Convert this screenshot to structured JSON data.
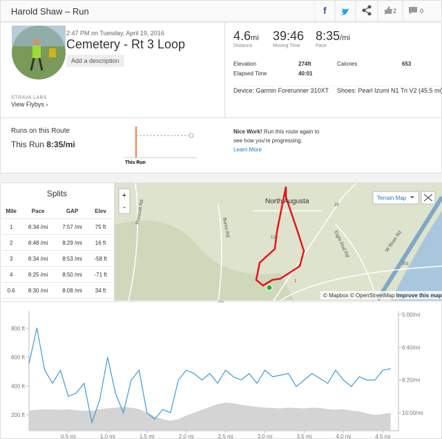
{
  "header": {
    "title": "Harold Shaw – Run",
    "kudos": "2",
    "comments": "0"
  },
  "activity": {
    "datetime": "2:47 PM on Tuesday, April 19, 2016",
    "name": "Cemetery - Rt 3 Loop",
    "add_description": "Add a description",
    "labs": "STRAVA LABS",
    "flybys": "View Flybys"
  },
  "stats": {
    "primary": [
      {
        "value": "4.6",
        "unit": "mi",
        "label": "Distance"
      },
      {
        "value": "39:46",
        "label": "Moving Time"
      },
      {
        "value": "8:35",
        "unit": "/mi",
        "label": "Pace"
      }
    ],
    "details": [
      [
        {
          "label": "Elevation",
          "value": "274ft"
        },
        {
          "label": "Calories",
          "value": "653"
        }
      ],
      [
        {
          "label": "Elapsed Time",
          "value": "40:01"
        }
      ]
    ],
    "device": "Device: Garmin Forerunner 310XT",
    "shoes": "Shoes: Pearl Izumi N1 Tri V2 (45.5 mi)"
  },
  "route": {
    "title": "Runs on this Route",
    "this_run_label": "This Run",
    "this_run_pace": "8:35/mi",
    "marker": "This Run",
    "message_bold": "Nice Work!",
    "message_1": "Run this route again to",
    "message_2": "see how you're progressing.",
    "link": "Learn More"
  },
  "splits": {
    "title": "Splits",
    "columns": [
      "Mile",
      "Pace",
      "GAP",
      "Elev"
    ],
    "rows": [
      [
        "1",
        "8:34 /mi",
        "7:57 /mi",
        "75 ft"
      ],
      [
        "2",
        "8:48 /mi",
        "8:29 /mi",
        "16 ft"
      ],
      [
        "3",
        "8:34 /mi",
        "8:53 /mi",
        "-58 ft"
      ],
      [
        "4",
        "8:25 /mi",
        "8:50 /mi",
        "-71 ft"
      ],
      [
        "0.6",
        "8:30 /mi",
        "8:08 /mi",
        "34 ft"
      ]
    ]
  },
  "map": {
    "place": "North Augusta",
    "roads": [
      "Prescott Rd",
      "Burns Rd",
      "Eight Rod Rd",
      "W River Rd"
    ],
    "route_numbers": [
      "25",
      "125",
      "1",
      "201"
    ],
    "terrain": "Terrain Map",
    "zoom_in": "+",
    "zoom_out": "-",
    "attribution": "© Mapbox © OpenStreetMap",
    "improve": "Improve this map"
  },
  "chart_data": {
    "type": "line",
    "x": [
      0,
      0.1,
      0.2,
      0.3,
      0.4,
      0.5,
      0.6,
      0.7,
      0.8,
      0.9,
      1.0,
      1.1,
      1.2,
      1.3,
      1.4,
      1.5,
      1.6,
      1.7,
      1.8,
      1.9,
      2.0,
      2.1,
      2.2,
      2.3,
      2.4,
      2.5,
      2.6,
      2.7,
      2.8,
      2.9,
      3.0,
      3.1,
      3.2,
      3.3,
      3.4,
      3.5,
      3.6,
      3.7,
      3.8,
      3.9,
      4.0,
      4.1,
      4.2,
      4.3,
      4.4,
      4.5,
      4.6
    ],
    "series": [
      {
        "kind": "area",
        "color": "#d4d4d4",
        "values": [
          230,
          235,
          238,
          237,
          236,
          238,
          232,
          228,
          230,
          240,
          245,
          250,
          255,
          250,
          240,
          215,
          190,
          170,
          160,
          170,
          195,
          215,
          235,
          255,
          275,
          285,
          280,
          270,
          262,
          255,
          250,
          248,
          245,
          250,
          248,
          245,
          250,
          248,
          240,
          235,
          240,
          230,
          225,
          210,
          200,
          205,
          215
        ]
      },
      {
        "kind": "line",
        "axis": "y2",
        "color": "#3a9ad9",
        "values": [
          450,
          340,
          470,
          510,
          470,
          550,
          540,
          510,
          630,
          560,
          430,
          540,
          600,
          500,
          470,
          600,
          620,
          590,
          600,
          500,
          470,
          480,
          500,
          480,
          510,
          470,
          490,
          500,
          480,
          510,
          470,
          490,
          485,
          480,
          520,
          500,
          480,
          495,
          510,
          470,
          500,
          520,
          490,
          500,
          500,
          470,
          465
        ]
      }
    ],
    "xlim": [
      0,
      4.7
    ],
    "xticks": [
      {
        "value": 0.5,
        "label": "0.5 mi"
      },
      {
        "value": 1.0,
        "label": "1.0 mi"
      },
      {
        "value": 1.5,
        "label": "1.5 mi"
      },
      {
        "value": 2.0,
        "label": "2.0 mi"
      },
      {
        "value": 2.5,
        "label": "2.5 mi"
      },
      {
        "value": 3.0,
        "label": "3.0 mi"
      },
      {
        "value": 3.5,
        "label": "3.5 mi"
      },
      {
        "value": 4.0,
        "label": "4.0 mi"
      },
      {
        "value": 4.5,
        "label": "4.5 mi"
      }
    ],
    "ylim": [
      90,
      920
    ],
    "yticks": [
      {
        "value": 200,
        "label": "200 ft"
      },
      {
        "value": 400,
        "label": "400 ft"
      },
      {
        "value": 600,
        "label": "600 ft"
      },
      {
        "value": 800,
        "label": "800 ft"
      }
    ],
    "y2lim": [
      655,
      289
    ],
    "y2ticks": [
      {
        "value": 300,
        "label": "5:00/mi"
      },
      {
        "value": 400,
        "label": "6:40/mi"
      },
      {
        "value": 500,
        "label": "8:20/mi"
      },
      {
        "value": 600,
        "label": "10:00/mi"
      }
    ]
  }
}
